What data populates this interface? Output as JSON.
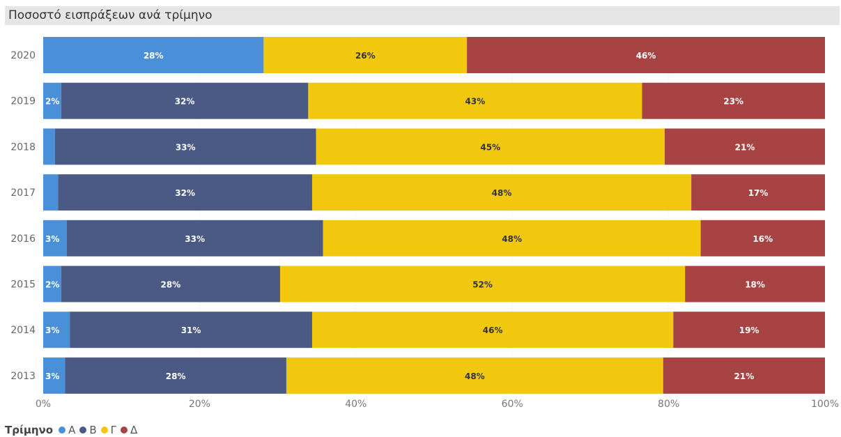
{
  "chart_data": {
    "type": "bar",
    "orientation": "horizontal",
    "stacked": "100%",
    "title": "Ποσοστό εισπράξεων ανά τρίμηνο",
    "categories": [
      "2020",
      "2019",
      "2018",
      "2017",
      "2016",
      "2015",
      "2014",
      "2013"
    ],
    "series": [
      {
        "name": "Α",
        "color": "#4a90d9",
        "values": [
          28.2,
          2.3,
          1.5,
          1.9,
          3.0,
          2.3,
          3.4,
          2.8
        ],
        "labels": [
          "28%",
          "2%",
          "",
          "",
          "3%",
          "2%",
          "3%",
          "3%"
        ]
      },
      {
        "name": "Β",
        "color": "#4a5a85",
        "values": [
          0,
          31.6,
          33.4,
          32.5,
          32.8,
          28.0,
          31.0,
          28.3
        ],
        "labels": [
          "",
          "32%",
          "33%",
          "32%",
          "33%",
          "28%",
          "31%",
          "28%"
        ]
      },
      {
        "name": "Γ",
        "color": "#f2c80f",
        "values": [
          26.0,
          42.7,
          44.6,
          48.5,
          48.3,
          51.8,
          46.2,
          48.2
        ],
        "labels": [
          "26%",
          "43%",
          "45%",
          "48%",
          "48%",
          "52%",
          "46%",
          "48%"
        ]
      },
      {
        "name": "Δ",
        "color": "#a84343",
        "values": [
          45.8,
          23.4,
          20.5,
          17.1,
          15.9,
          17.9,
          19.4,
          20.7
        ],
        "labels": [
          "46%",
          "23%",
          "21%",
          "17%",
          "16%",
          "18%",
          "19%",
          "21%"
        ]
      }
    ],
    "x_ticks": [
      "0%",
      "20%",
      "40%",
      "60%",
      "80%",
      "100%"
    ],
    "xlim": [
      0,
      100
    ],
    "grid": true,
    "legend": {
      "title": "Τρίμηνο",
      "position": "bottom-left"
    }
  }
}
